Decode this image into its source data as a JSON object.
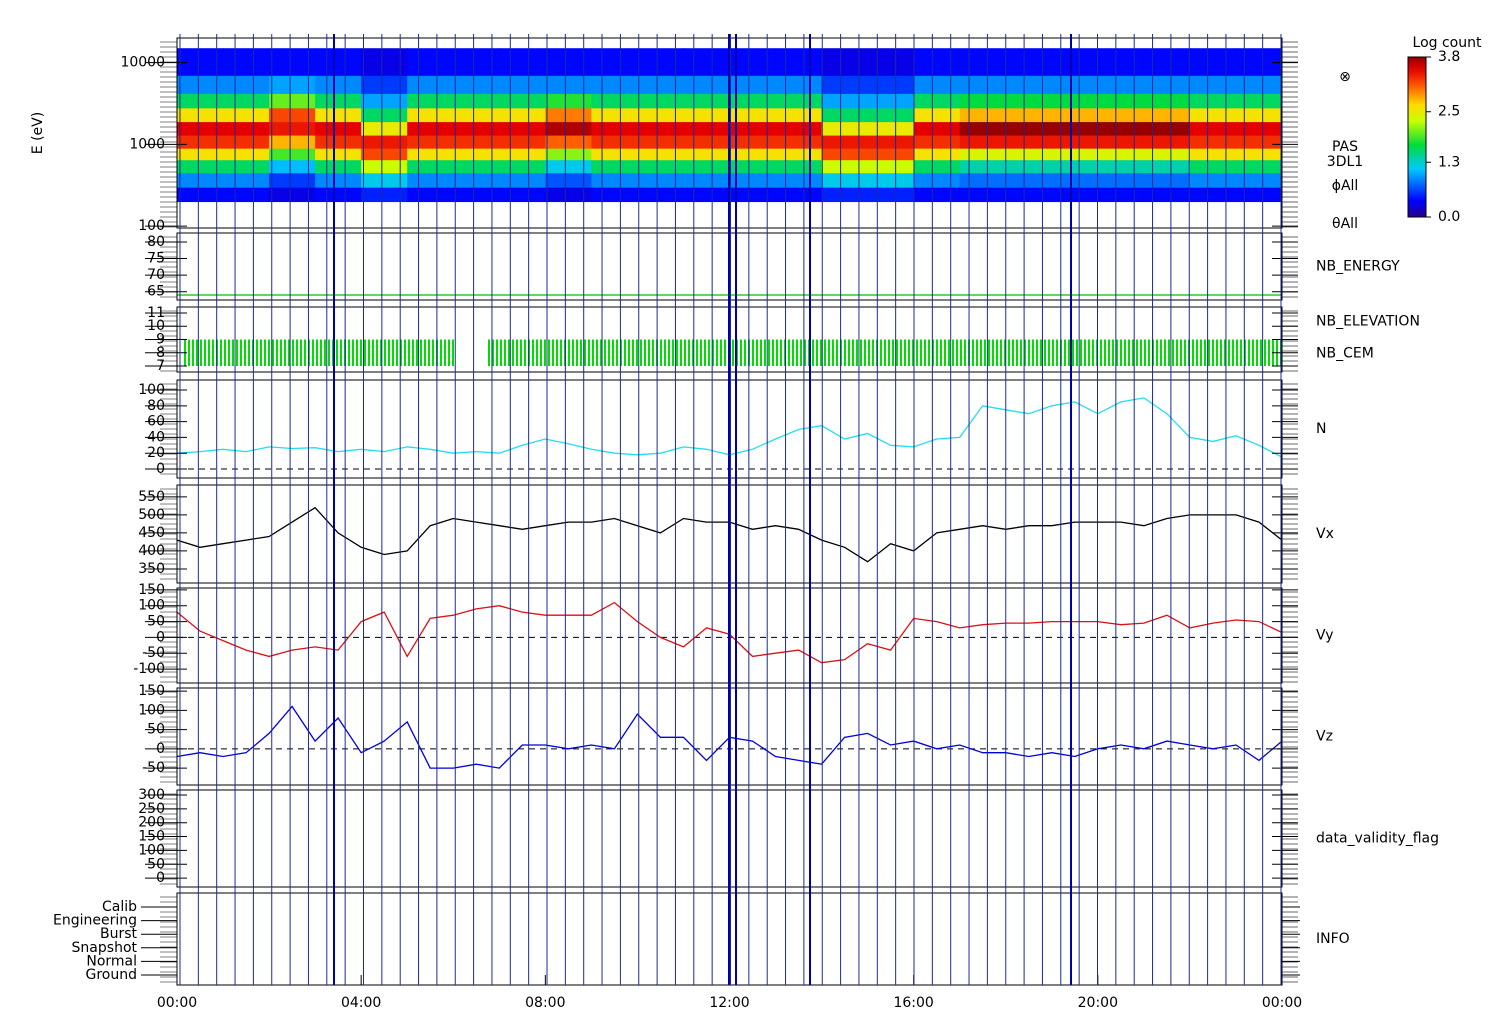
{
  "chart_data": [
    {
      "type": "heatmap",
      "ylabel": "E (eV)",
      "log": true,
      "ylim": [
        95,
        20000
      ],
      "yticks": [
        100,
        1000,
        10000
      ],
      "x_bins": [
        0,
        1,
        2,
        3,
        4,
        5,
        6,
        7,
        8,
        9,
        10,
        11,
        12,
        13,
        14,
        15,
        16,
        17,
        18,
        19,
        20,
        21,
        22,
        23,
        24
      ],
      "y_bins": [
        200,
        300,
        450,
        650,
        900,
        1300,
        1900,
        2800,
        4200,
        7000,
        15000
      ],
      "z": [
        [
          0.4,
          0.9,
          1.6,
          2.6,
          3.3,
          3.5,
          2.6,
          1.6,
          0.9,
          0.4
        ],
        [
          0.4,
          0.9,
          1.6,
          2.6,
          3.3,
          3.5,
          2.6,
          1.6,
          0.9,
          0.4
        ],
        [
          0.3,
          0.6,
          1.1,
          1.9,
          2.8,
          3.4,
          3.2,
          2.0,
          1.0,
          0.4
        ],
        [
          0.4,
          0.9,
          1.6,
          2.6,
          3.3,
          3.5,
          2.6,
          1.6,
          0.9,
          0.4
        ],
        [
          0.5,
          1.2,
          2.3,
          3.2,
          3.4,
          2.5,
          1.6,
          1.0,
          0.6,
          0.3
        ],
        [
          0.4,
          0.9,
          1.6,
          2.6,
          3.3,
          3.5,
          2.6,
          1.6,
          0.9,
          0.4
        ],
        [
          0.4,
          0.9,
          1.6,
          2.6,
          3.3,
          3.5,
          2.6,
          1.6,
          0.9,
          0.4
        ],
        [
          0.4,
          0.9,
          1.6,
          2.6,
          3.3,
          3.5,
          2.6,
          1.6,
          0.9,
          0.4
        ],
        [
          0.3,
          0.7,
          1.2,
          2.1,
          3.1,
          3.7,
          3.0,
          1.8,
          0.9,
          0.4
        ],
        [
          0.4,
          0.9,
          1.6,
          2.6,
          3.3,
          3.5,
          2.6,
          1.6,
          0.9,
          0.4
        ],
        [
          0.4,
          0.9,
          1.6,
          2.6,
          3.3,
          3.5,
          2.6,
          1.6,
          0.9,
          0.4
        ],
        [
          0.4,
          0.9,
          1.6,
          2.6,
          3.3,
          3.5,
          2.6,
          1.6,
          0.9,
          0.4
        ],
        [
          0.4,
          0.9,
          1.6,
          2.6,
          3.3,
          3.5,
          2.6,
          1.6,
          0.9,
          0.4
        ],
        [
          0.4,
          0.9,
          1.6,
          2.6,
          3.3,
          3.5,
          2.6,
          1.6,
          0.9,
          0.4
        ],
        [
          0.5,
          1.2,
          2.3,
          3.2,
          3.4,
          2.5,
          1.6,
          1.0,
          0.6,
          0.3
        ],
        [
          0.5,
          1.2,
          2.3,
          3.2,
          3.4,
          2.5,
          1.6,
          1.0,
          0.6,
          0.3
        ],
        [
          0.4,
          0.9,
          1.6,
          2.6,
          3.3,
          3.5,
          2.6,
          1.6,
          0.9,
          0.4
        ],
        [
          0.4,
          0.8,
          1.4,
          2.4,
          3.4,
          3.8,
          2.8,
          1.7,
          0.9,
          0.4
        ],
        [
          0.4,
          0.8,
          1.4,
          2.4,
          3.4,
          3.8,
          2.8,
          1.7,
          0.9,
          0.4
        ],
        [
          0.4,
          0.8,
          1.4,
          2.4,
          3.4,
          3.8,
          2.8,
          1.7,
          0.9,
          0.4
        ],
        [
          0.4,
          0.8,
          1.4,
          2.4,
          3.4,
          3.8,
          2.8,
          1.7,
          0.9,
          0.4
        ],
        [
          0.4,
          0.8,
          1.4,
          2.4,
          3.4,
          3.8,
          2.8,
          1.7,
          0.9,
          0.4
        ],
        [
          0.4,
          0.9,
          1.6,
          2.6,
          3.3,
          3.5,
          2.6,
          1.6,
          0.9,
          0.4
        ],
        [
          0.4,
          0.9,
          1.6,
          2.6,
          3.3,
          3.5,
          2.6,
          1.6,
          0.9,
          0.4
        ]
      ],
      "zlim": [
        0,
        3.8
      ],
      "colorbar_label": "Log count",
      "zticks": [
        {
          "value": 0,
          "label": "0.0"
        },
        1.3,
        2.5,
        3.8
      ],
      "labels": [
        "PAS",
        "3DL1",
        "ϕAll",
        "θAll"
      ],
      "symbol": "⊗"
    },
    {
      "type": "line",
      "ylim": [
        62.5,
        82.7
      ],
      "yticks": [
        65,
        70,
        75,
        80
      ],
      "x": [
        0,
        24
      ],
      "series": [
        {
          "name": "NB_ENERGY",
          "color": "#00c000",
          "values": [
            64,
            64
          ]
        }
      ]
    },
    {
      "type": "range",
      "ylim": [
        6.55,
        11.45
      ],
      "yticks": [
        7,
        8,
        9,
        10,
        11
      ],
      "series": [
        {
          "name": "NB_ELEVATION",
          "color": "#00dd00",
          "intervals": [
            [
              0.15,
              6.05
            ],
            [
              6.75,
              24
            ]
          ],
          "values": [
            9,
            9
          ],
          "base": 7
        },
        {
          "name": "NB_CEM",
          "color": "#2020c0"
        }
      ]
    },
    {
      "type": "line",
      "ylim": [
        -11.4,
        112.7
      ],
      "yticks": [
        0,
        20,
        40,
        60,
        80,
        100
      ],
      "zero_line": true,
      "x": [
        0,
        0.5,
        1,
        1.5,
        2,
        2.5,
        3,
        3.5,
        4,
        4.5,
        5,
        5.5,
        6,
        6.5,
        7,
        7.5,
        8,
        8.5,
        9,
        9.5,
        10,
        10.5,
        11,
        11.5,
        12,
        12.5,
        13,
        13.5,
        14,
        14.5,
        15,
        15.5,
        16,
        16.5,
        17,
        17.5,
        18,
        18.5,
        19,
        19.5,
        20,
        20.5,
        21,
        21.5,
        22,
        22.5,
        23,
        23.5,
        24
      ],
      "series": [
        {
          "name": "N",
          "color": "#22ddee",
          "values": [
            20,
            22,
            25,
            22,
            28,
            26,
            27,
            22,
            25,
            22,
            28,
            25,
            20,
            22,
            20,
            30,
            38,
            32,
            25,
            20,
            18,
            20,
            28,
            25,
            18,
            25,
            38,
            50,
            55,
            38,
            45,
            30,
            28,
            38,
            40,
            80,
            75,
            70,
            80,
            85,
            70,
            85,
            90,
            70,
            40,
            35,
            42,
            30,
            15
          ]
        }
      ]
    },
    {
      "type": "line",
      "ylim": [
        311,
        583
      ],
      "yticks": [
        350,
        400,
        450,
        500,
        550
      ],
      "x": [
        0,
        0.5,
        1,
        1.5,
        2,
        2.5,
        3,
        3.5,
        4,
        4.5,
        5,
        5.5,
        6,
        6.5,
        7,
        7.5,
        8,
        8.5,
        9,
        9.5,
        10,
        10.5,
        11,
        11.5,
        12,
        12.5,
        13,
        13.5,
        14,
        14.5,
        15,
        15.5,
        16,
        16.5,
        17,
        17.5,
        18,
        18.5,
        19,
        19.5,
        20,
        20.5,
        21,
        21.5,
        22,
        22.5,
        23,
        23.5,
        24
      ],
      "series": [
        {
          "name": "Vx",
          "color": "#000000",
          "values": [
            430,
            410,
            420,
            430,
            440,
            480,
            520,
            450,
            410,
            390,
            400,
            470,
            490,
            480,
            470,
            460,
            470,
            480,
            480,
            490,
            470,
            450,
            490,
            480,
            480,
            460,
            470,
            460,
            430,
            410,
            370,
            420,
            400,
            450,
            460,
            470,
            460,
            470,
            470,
            480,
            480,
            480,
            470,
            490,
            500,
            500,
            500,
            480,
            430
          ]
        }
      ]
    },
    {
      "type": "line",
      "ylim": [
        -144,
        156
      ],
      "yticks": [
        -100,
        -50,
        0,
        50,
        100,
        150
      ],
      "zero_line": true,
      "x": [
        0,
        0.5,
        1,
        1.5,
        2,
        2.5,
        3,
        3.5,
        4,
        4.5,
        5,
        5.5,
        6,
        6.5,
        7,
        7.5,
        8,
        8.5,
        9,
        9.5,
        10,
        10.5,
        11,
        11.5,
        12,
        12.5,
        13,
        13.5,
        14,
        14.5,
        15,
        15.5,
        16,
        16.5,
        17,
        17.5,
        18,
        18.5,
        19,
        19.5,
        20,
        20.5,
        21,
        21.5,
        22,
        22.5,
        23,
        23.5,
        24
      ],
      "series": [
        {
          "name": "Vy",
          "color": "#dd1111",
          "values": [
            80,
            20,
            -10,
            -40,
            -60,
            -40,
            -30,
            -40,
            50,
            80,
            -60,
            60,
            70,
            90,
            100,
            80,
            70,
            70,
            70,
            110,
            50,
            0,
            -30,
            30,
            10,
            -60,
            -50,
            -40,
            -80,
            -70,
            -20,
            -40,
            60,
            50,
            30,
            40,
            45,
            45,
            50,
            50,
            50,
            40,
            45,
            70,
            30,
            45,
            55,
            50,
            15
          ]
        }
      ]
    },
    {
      "type": "line",
      "ylim": [
        -94,
        158
      ],
      "yticks": [
        -50,
        0,
        50,
        100,
        150
      ],
      "zero_line": true,
      "x": [
        0,
        0.5,
        1,
        1.5,
        2,
        2.5,
        3,
        3.5,
        4,
        4.5,
        5,
        5.5,
        6,
        6.5,
        7,
        7.5,
        8,
        8.5,
        9,
        9.5,
        10,
        10.5,
        11,
        11.5,
        12,
        12.5,
        13,
        13.5,
        14,
        14.5,
        15,
        15.5,
        16,
        16.5,
        17,
        17.5,
        18,
        18.5,
        19,
        19.5,
        20,
        20.5,
        21,
        21.5,
        22,
        22.5,
        23,
        23.5,
        24
      ],
      "series": [
        {
          "name": "Vz",
          "color": "#0000dd",
          "values": [
            -20,
            -10,
            -20,
            -10,
            40,
            110,
            20,
            80,
            -10,
            20,
            70,
            -50,
            -50,
            -40,
            -50,
            10,
            10,
            0,
            10,
            0,
            90,
            30,
            30,
            -30,
            30,
            20,
            -20,
            -30,
            -40,
            30,
            40,
            10,
            20,
            0,
            10,
            -10,
            -10,
            -20,
            -10,
            -20,
            0,
            10,
            0,
            20,
            10,
            0,
            10,
            -30,
            20
          ]
        }
      ]
    },
    {
      "type": "empty",
      "label": "data_validity_flag",
      "ylim": [
        -32,
        318
      ],
      "yticks": [
        0,
        50,
        100,
        150,
        200,
        250,
        300
      ]
    },
    {
      "type": "categorical",
      "label": "INFO",
      "categories": [
        "Calib",
        "Engineering",
        "Burst",
        "Snapshot",
        "Normal",
        "Ground"
      ],
      "xlim": [
        0,
        24
      ],
      "xticks": [
        {
          "value": 0,
          "label": "00:00"
        },
        {
          "value": 4,
          "label": "04:00"
        },
        {
          "value": 8,
          "label": "08:00"
        },
        {
          "value": 12,
          "label": "12:00"
        },
        {
          "value": 16,
          "label": "16:00"
        },
        {
          "value": 20,
          "label": "20:00"
        },
        {
          "value": 24,
          "label": "00:00"
        }
      ]
    }
  ]
}
